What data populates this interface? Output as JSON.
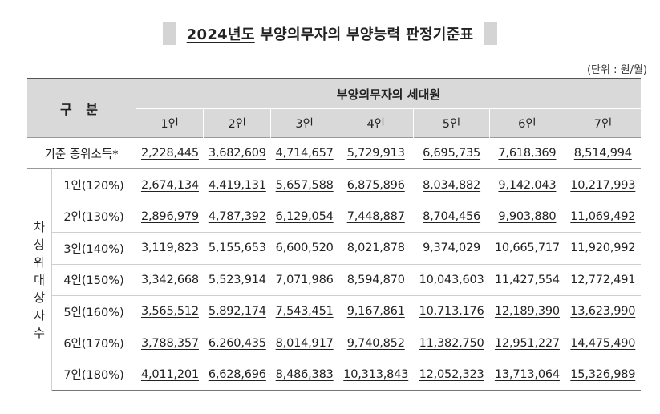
{
  "title": {
    "year_part": "2024년도",
    "rest": "부양의무자의 부양능력 판정기준표"
  },
  "unit": "(단위 : 원/월)",
  "table": {
    "gubun": "구 분",
    "group_header": "부양의무자의 세대원",
    "columns": [
      "1인",
      "2인",
      "3인",
      "4인",
      "5인",
      "6인",
      "7인"
    ],
    "median_label": "기준 중위소득*",
    "median_values": [
      "2,228,445",
      "3,682,609",
      "4,714,657",
      "5,729,913",
      "6,695,735",
      "7,618,369",
      "8,514,994"
    ],
    "side_group_label": [
      "차",
      "상",
      "위",
      "대",
      "상",
      "자",
      "수"
    ],
    "rows": [
      {
        "label": "1인(120%)",
        "values": [
          "2,674,134",
          "4,419,131",
          "5,657,588",
          "6,875,896",
          "8,034,882",
          "9,142,043",
          "10,217,993"
        ]
      },
      {
        "label": "2인(130%)",
        "values": [
          "2,896,979",
          "4,787,392",
          "6,129,054",
          "7,448,887",
          "8,704,456",
          "9,903,880",
          "11,069,492"
        ]
      },
      {
        "label": "3인(140%)",
        "values": [
          "3,119,823",
          "5,155,653",
          "6,600,520",
          "8,021,878",
          "9,374,029",
          "10,665,717",
          "11,920,992"
        ]
      },
      {
        "label": "4인(150%)",
        "values": [
          "3,342,668",
          "5,523,914",
          "7,071,986",
          "8,594,870",
          "10,043,603",
          "11,427,554",
          "12,772,491"
        ]
      },
      {
        "label": "5인(160%)",
        "values": [
          "3,565,512",
          "5,892,174",
          "7,543,451",
          "9,167,861",
          "10,713,176",
          "12,189,390",
          "13,623,990"
        ]
      },
      {
        "label": "6인(170%)",
        "values": [
          "3,788,357",
          "6,260,435",
          "8,014,917",
          "9,740,852",
          "11,382,750",
          "12,951,227",
          "14,475,490"
        ]
      },
      {
        "label": "7인(180%)",
        "values": [
          "4,011,201",
          "6,628,696",
          "8,486,383",
          "10,313,843",
          "12,052,323",
          "13,713,064",
          "15,326,989"
        ]
      }
    ]
  }
}
